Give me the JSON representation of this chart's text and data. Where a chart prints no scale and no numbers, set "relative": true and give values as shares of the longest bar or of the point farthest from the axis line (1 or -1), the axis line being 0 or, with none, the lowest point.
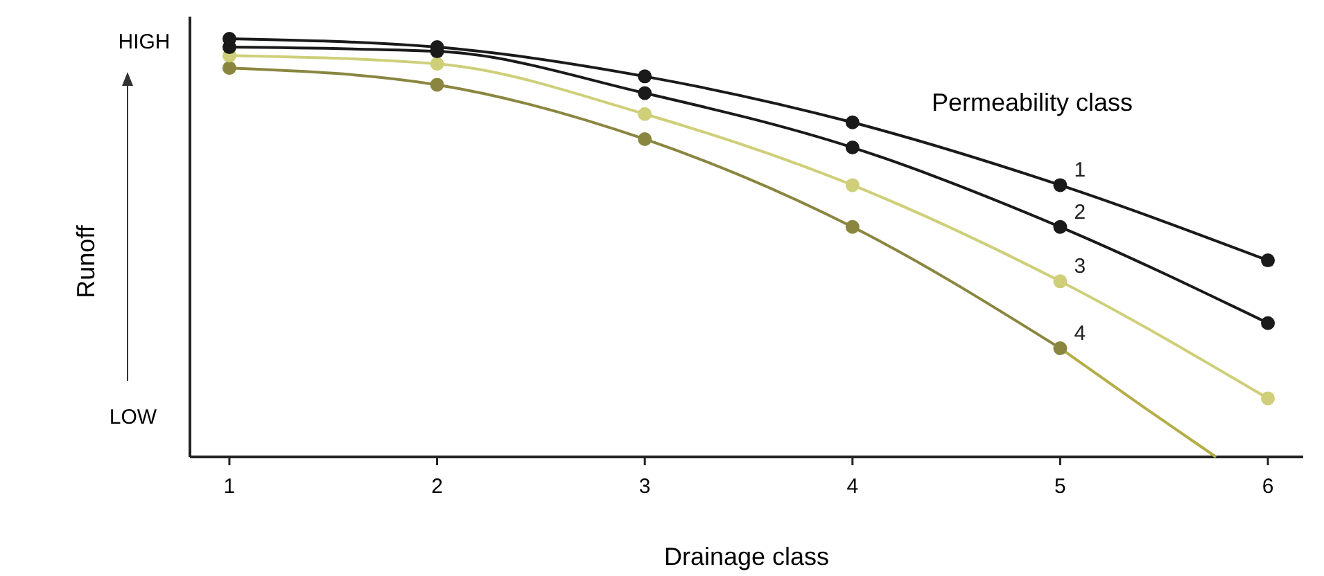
{
  "chart_data": {
    "type": "line",
    "relative": true,
    "xlabel": "Drainage class",
    "ylabel": "Runoff",
    "legend_title": "Permeability class",
    "x": [
      1,
      2,
      3,
      4,
      5,
      6
    ],
    "xlim": [
      0.81,
      6.17
    ],
    "xticks": [
      1,
      2,
      3,
      4,
      5,
      6
    ],
    "marker": "circle",
    "line_style": "solid",
    "grid": false,
    "annotations": [
      "HIGH",
      "LOW"
    ],
    "series": [
      {
        "name": "1",
        "color": "#1a1a1a",
        "values": [
          1,
          0.98,
          0.91,
          0.8,
          0.65,
          0.47
        ]
      },
      {
        "name": "2",
        "color": "#1a1a1a",
        "values": [
          0.98,
          0.97,
          0.87,
          0.74,
          0.55,
          0.32
        ]
      },
      {
        "name": "3",
        "color": "#cfcf7a",
        "values": [
          0.96,
          0.94,
          0.82,
          0.65,
          0.42,
          0.14
        ]
      },
      {
        "name": "4",
        "color": "#8a8640",
        "x": [
          1,
          2,
          3,
          4,
          5
        ],
        "values": [
          0.93,
          0.89,
          0.76,
          0.55,
          0.26
        ]
      },
      {
        "color": "#b5ae48",
        "x": [
          5,
          5.4,
          5.75
        ],
        "values": [
          0.26,
          0.12,
          0
        ],
        "marker": "none"
      }
    ]
  }
}
